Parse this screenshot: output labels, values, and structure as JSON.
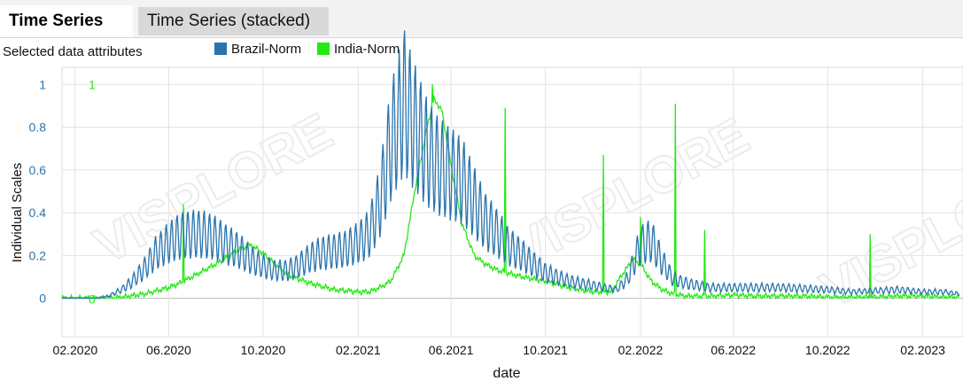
{
  "tabs": [
    {
      "label": "Time Series",
      "active": true
    },
    {
      "label": "Time Series (stacked)",
      "active": false
    }
  ],
  "attributes_label": "Selected data attributes",
  "watermark": "VISPLORE",
  "chart_data": {
    "type": "line",
    "xlabel": "date",
    "ylabel": "Individual Scales",
    "x_range": [
      "2020-01-15",
      "2023-03-25"
    ],
    "ylim": [
      -0.18,
      1.08
    ],
    "yticks": [
      0,
      0.2,
      0.4,
      0.6,
      0.8,
      1
    ],
    "ytick_labels": [
      "0",
      "0.2",
      "0.4",
      "0.6",
      "0.8",
      "1"
    ],
    "xticks": [
      "2020-02-01",
      "2020-06-01",
      "2020-10-01",
      "2021-02-01",
      "2021-06-01",
      "2021-10-01",
      "2022-02-01",
      "2022-06-01",
      "2022-10-01",
      "2023-02-01"
    ],
    "xtick_labels": [
      "02.2020",
      "06.2020",
      "10.2020",
      "02.2021",
      "06.2021",
      "10.2021",
      "02.2022",
      "06.2022",
      "10.2022",
      "02.2023"
    ],
    "secondary_axis_labels": {
      "top": "1",
      "bottom": "0"
    },
    "grid": true,
    "legend_position": "top",
    "series": [
      {
        "name": "Brazil-Norm",
        "color": "#2a74ad",
        "x": [
          "2020-01-15",
          "2020-03-01",
          "2020-03-15",
          "2020-04-01",
          "2020-04-15",
          "2020-05-01",
          "2020-05-15",
          "2020-06-01",
          "2020-06-15",
          "2020-07-01",
          "2020-07-15",
          "2020-08-01",
          "2020-08-15",
          "2020-09-01",
          "2020-09-15",
          "2020-10-01",
          "2020-10-15",
          "2020-11-01",
          "2020-11-15",
          "2020-12-01",
          "2020-12-15",
          "2021-01-01",
          "2021-01-15",
          "2021-02-01",
          "2021-02-15",
          "2021-03-01",
          "2021-03-15",
          "2021-04-01",
          "2021-04-15",
          "2021-05-01",
          "2021-05-15",
          "2021-06-01",
          "2021-06-15",
          "2021-07-01",
          "2021-07-15",
          "2021-08-01",
          "2021-08-15",
          "2021-09-01",
          "2021-09-15",
          "2021-10-01",
          "2021-10-15",
          "2021-11-01",
          "2021-11-15",
          "2021-12-01",
          "2021-12-15",
          "2022-01-01",
          "2022-01-15",
          "2022-02-01",
          "2022-02-15",
          "2022-03-01",
          "2022-03-15",
          "2022-04-01",
          "2022-05-01",
          "2022-06-01",
          "2022-07-01",
          "2022-08-01",
          "2022-09-01",
          "2022-10-01",
          "2022-11-01",
          "2022-12-01",
          "2023-01-01",
          "2023-02-01",
          "2023-03-01",
          "2023-03-20"
        ],
        "values": [
          0,
          0,
          0.01,
          0.04,
          0.08,
          0.14,
          0.21,
          0.26,
          0.29,
          0.3,
          0.3,
          0.28,
          0.25,
          0.22,
          0.18,
          0.15,
          0.13,
          0.13,
          0.15,
          0.19,
          0.21,
          0.22,
          0.23,
          0.26,
          0.3,
          0.45,
          0.72,
          0.92,
          0.8,
          0.68,
          0.62,
          0.58,
          0.55,
          0.45,
          0.36,
          0.3,
          0.24,
          0.2,
          0.16,
          0.12,
          0.1,
          0.08,
          0.07,
          0.06,
          0.05,
          0.04,
          0.09,
          0.25,
          0.27,
          0.17,
          0.09,
          0.07,
          0.05,
          0.05,
          0.05,
          0.05,
          0.045,
          0.04,
          0.03,
          0.035,
          0.04,
          0.03,
          0.03,
          0.02
        ],
        "peak": {
          "x": "2021-03-25",
          "value": 1.0
        }
      },
      {
        "name": "India-Norm",
        "color": "#22ea11",
        "x": [
          "2020-01-15",
          "2020-03-15",
          "2020-04-01",
          "2020-05-01",
          "2020-06-01",
          "2020-06-15",
          "2020-07-01",
          "2020-08-01",
          "2020-09-01",
          "2020-09-15",
          "2020-10-01",
          "2020-11-01",
          "2020-12-01",
          "2021-01-01",
          "2021-02-01",
          "2021-02-15",
          "2021-03-01",
          "2021-03-15",
          "2021-04-01",
          "2021-04-15",
          "2021-05-01",
          "2021-05-10",
          "2021-05-20",
          "2021-06-01",
          "2021-06-15",
          "2021-07-01",
          "2021-07-15",
          "2021-08-01",
          "2021-09-01",
          "2021-10-01",
          "2021-11-01",
          "2021-12-01",
          "2021-12-25",
          "2022-01-10",
          "2022-01-22",
          "2022-02-01",
          "2022-02-15",
          "2022-03-01",
          "2022-03-15",
          "2022-04-01",
          "2022-05-01",
          "2022-06-01",
          "2022-07-01",
          "2022-08-01",
          "2022-09-01",
          "2022-10-01",
          "2022-11-01",
          "2022-12-01",
          "2023-01-01",
          "2023-02-01",
          "2023-03-01",
          "2023-03-20"
        ],
        "values": [
          0,
          0,
          0.005,
          0.02,
          0.05,
          0.07,
          0.1,
          0.16,
          0.23,
          0.25,
          0.21,
          0.11,
          0.07,
          0.04,
          0.03,
          0.03,
          0.05,
          0.08,
          0.2,
          0.5,
          0.8,
          0.93,
          0.88,
          0.62,
          0.35,
          0.2,
          0.16,
          0.13,
          0.1,
          0.08,
          0.05,
          0.03,
          0.03,
          0.12,
          0.18,
          0.16,
          0.08,
          0.04,
          0.02,
          0.01,
          0.01,
          0.015,
          0.01,
          0.01,
          0.01,
          0.005,
          0.005,
          0.005,
          0.01,
          0.01,
          0.005,
          0.005
        ],
        "spikes": [
          {
            "x": "2020-06-20",
            "value": 0.44
          },
          {
            "x": "2021-05-08",
            "value": 1.0
          },
          {
            "x": "2021-08-10",
            "value": 0.89
          },
          {
            "x": "2021-12-15",
            "value": 0.67
          },
          {
            "x": "2022-02-01",
            "value": 0.38
          },
          {
            "x": "2022-03-18",
            "value": 0.91
          },
          {
            "x": "2022-04-25",
            "value": 0.32
          },
          {
            "x": "2022-11-25",
            "value": 0.3
          }
        ]
      }
    ]
  }
}
